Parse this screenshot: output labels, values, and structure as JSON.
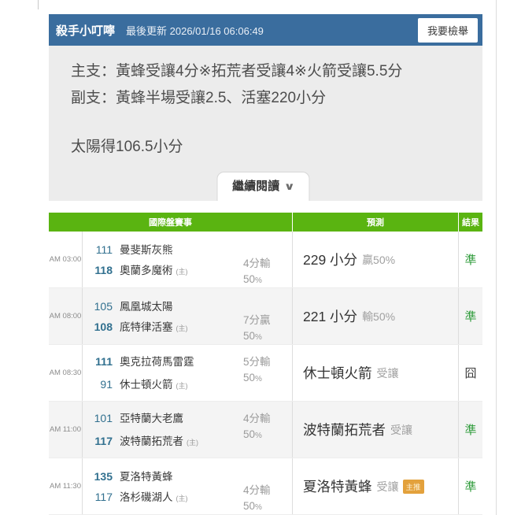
{
  "header": {
    "title": "殺手小叮嚀",
    "last_updated": "最後更新 2026/01/16 06:06:49",
    "report_button": "我要檢舉"
  },
  "tips": {
    "line1": "主支：黃蜂受讓4分※拓荒者受讓4※火箭受讓5.5分",
    "line2": "副支：黃蜂半場受讓2.5、活塞220小分",
    "line3": "太陽得106.5小分"
  },
  "continue_reading": {
    "label": "繼續閱讀",
    "chevron": "∨"
  },
  "table": {
    "headers": {
      "events": "國際盤賽事",
      "prediction": "預測",
      "result": "結果"
    },
    "rows": [
      {
        "time": "AM 03:00",
        "away_score": "111",
        "away_team": "曼斐斯灰熊",
        "home_score": "118",
        "home_team": "奧蘭多魔術",
        "home_tag": "(主)",
        "spread_result": "4分輸",
        "spread_pct_num": "50",
        "spread_pct_sign": "%",
        "prediction_main": "229 小分",
        "prediction_sub": "贏50%",
        "result": "準"
      },
      {
        "time": "AM 08:00",
        "away_score": "105",
        "away_team": "鳳凰城太陽",
        "home_score": "108",
        "home_team": "底特律活塞",
        "home_tag": "(主)",
        "spread_result": "7分贏",
        "spread_pct_num": "50",
        "spread_pct_sign": "%",
        "prediction_main": "221 小分",
        "prediction_sub": "輸50%",
        "result": "準"
      },
      {
        "time": "AM 08:30",
        "away_score": "111",
        "away_team": "奧克拉荷馬雷霆",
        "home_score": "91",
        "home_team": "休士頓火箭",
        "home_tag": "(主)",
        "spread_result": "5分輸",
        "spread_pct_num": "50",
        "spread_pct_sign": "%",
        "prediction_main": "休士頓火箭",
        "prediction_sub": "受讓",
        "result": "囧"
      },
      {
        "time": "AM 11:00",
        "away_score": "101",
        "away_team": "亞特蘭大老鷹",
        "home_score": "117",
        "home_team": "波特蘭拓荒者",
        "home_tag": "(主)",
        "spread_result": "4分輸",
        "spread_pct_num": "50",
        "spread_pct_sign": "%",
        "prediction_main": "波特蘭拓荒者",
        "prediction_sub": "受讓",
        "result": "準"
      },
      {
        "time": "AM 11:30",
        "away_score": "135",
        "away_team": "夏洛特黃蜂",
        "home_score": "117",
        "home_team": "洛杉磯湖人",
        "home_tag": "(主)",
        "spread_result": "4分輸",
        "spread_pct_num": "50",
        "spread_pct_sign": "%",
        "prediction_main": "夏洛特黃蜂",
        "prediction_sub": "受讓",
        "badge": "主推",
        "result": "準"
      }
    ]
  },
  "colors": {
    "header_blue": "#3a6d9e",
    "table_header_green": "#5ab411",
    "score_blue": "#31708f",
    "result_ok_green": "#2e9b3a",
    "badge_orange": "#e3a13c",
    "panel_gray": "#ececec"
  }
}
